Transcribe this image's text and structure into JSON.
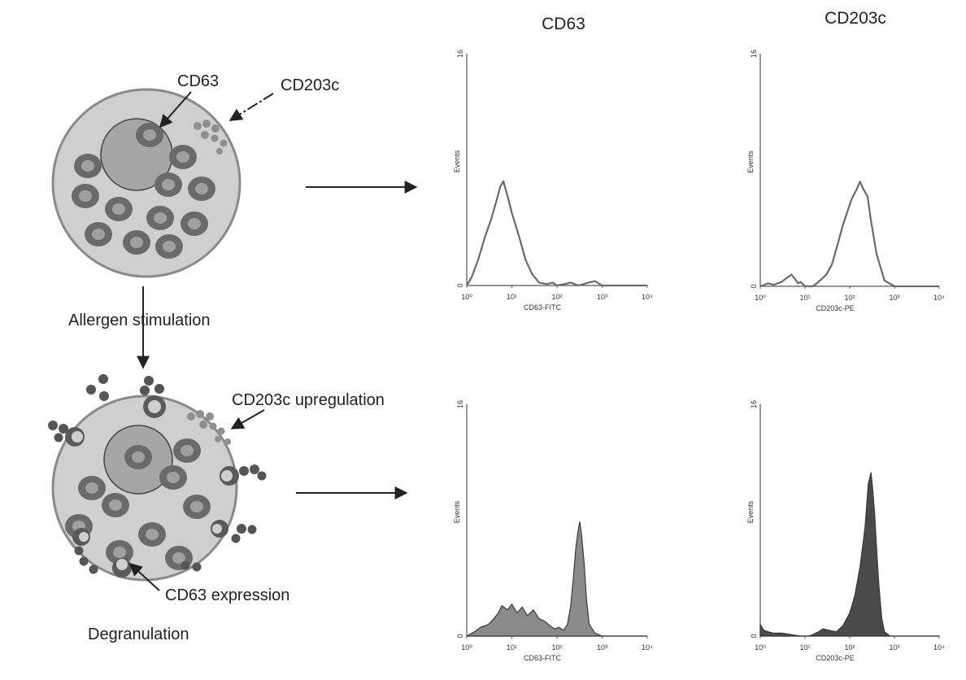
{
  "headers": {
    "left_column": "CD63",
    "right_column": "CD203c"
  },
  "labels": {
    "cd63": "CD63",
    "cd203c": "CD203c",
    "allergen_stimulation": "Allergen stimulation",
    "cd203c_upregulation": "CD203c upregulation",
    "cd63_expression": "CD63 expression",
    "degranulation": "Degranulation"
  },
  "chart_data": [
    {
      "id": "cd63-resting",
      "type": "line",
      "filled": false,
      "xlabel": "CD63-FITC",
      "ylabel": "Events",
      "xscale": "log",
      "xlim": [
        1,
        10000
      ],
      "ylim": [
        0,
        16
      ],
      "xticks": [
        "10⁰",
        "10¹",
        "10²",
        "10³",
        "10⁴"
      ],
      "yticks": [
        "0",
        "16"
      ],
      "x": [
        1,
        1.3,
        1.8,
        2.5,
        3.5,
        4.5,
        5.5,
        6.5,
        8,
        10,
        12,
        15,
        20,
        28,
        40,
        60,
        80,
        100,
        150,
        200,
        300,
        500,
        700,
        1000,
        2000,
        10000
      ],
      "y": [
        0,
        0.6,
        1.8,
        3.3,
        4.6,
        5.8,
        6.8,
        7.2,
        6.2,
        5.0,
        4.2,
        3.2,
        1.8,
        0.8,
        0.2,
        0.1,
        0.2,
        0,
        0.1,
        0.2,
        0,
        0.2,
        0.3,
        0,
        0,
        0
      ]
    },
    {
      "id": "cd203c-resting",
      "type": "line",
      "filled": false,
      "xlabel": "CD203c-PE",
      "ylabel": "Events",
      "xscale": "log",
      "xlim": [
        1,
        10000
      ],
      "ylim": [
        0,
        16
      ],
      "xticks": [
        "10⁰",
        "10¹",
        "10²",
        "10³",
        "10⁴"
      ],
      "yticks": [
        "0",
        "16"
      ],
      "x": [
        1,
        1.5,
        2,
        3,
        4,
        5,
        6,
        7,
        8,
        10,
        15,
        20,
        30,
        40,
        55,
        70,
        90,
        110,
        140,
        170,
        200,
        250,
        300,
        400,
        600,
        1000,
        10000
      ],
      "y": [
        0,
        0.2,
        0.1,
        0.3,
        0.6,
        0.8,
        0.5,
        0.2,
        0.3,
        0,
        0,
        0.3,
        0.8,
        1.5,
        3.0,
        4.2,
        5.2,
        6.0,
        6.6,
        7.2,
        6.7,
        6.2,
        4.5,
        2.2,
        0.4,
        0,
        0
      ]
    },
    {
      "id": "cd63-stimulated",
      "type": "area",
      "filled": true,
      "xlabel": "CD63-FITC",
      "ylabel": "Events",
      "xscale": "log",
      "xlim": [
        1,
        10000
      ],
      "ylim": [
        0,
        16
      ],
      "xticks": [
        "10⁰",
        "10¹",
        "10²",
        "10³",
        "10⁴"
      ],
      "yticks": [
        "0",
        "16"
      ],
      "x": [
        1,
        1.5,
        2,
        3,
        4,
        5,
        6,
        8,
        10,
        13,
        17,
        22,
        30,
        40,
        55,
        70,
        90,
        110,
        140,
        170,
        200,
        230,
        260,
        290,
        320,
        350,
        400,
        450,
        520,
        700,
        1000,
        10000
      ],
      "y": [
        0,
        0.3,
        0.6,
        0.8,
        1.2,
        1.6,
        2.1,
        1.8,
        2.2,
        1.6,
        2.0,
        1.4,
        1.8,
        1.2,
        1.0,
        0.7,
        0.5,
        0.6,
        0.4,
        0.8,
        2.0,
        4.0,
        6.0,
        7.2,
        7.9,
        7.0,
        5.0,
        2.5,
        0.8,
        0.2,
        0,
        0
      ]
    },
    {
      "id": "cd203c-stimulated",
      "type": "area",
      "filled": true,
      "xlabel": "CD203c-PE",
      "ylabel": "Events",
      "xscale": "log",
      "xlim": [
        1,
        10000
      ],
      "ylim": [
        0,
        16
      ],
      "xticks": [
        "10⁰",
        "10¹",
        "10²",
        "10³",
        "10⁴"
      ],
      "yticks": [
        "0",
        "16"
      ],
      "x": [
        1,
        1.2,
        1.5,
        2,
        3,
        5,
        8,
        12,
        15,
        20,
        25,
        35,
        50,
        70,
        100,
        130,
        170,
        220,
        260,
        300,
        330,
        360,
        400,
        450,
        520,
        600,
        800,
        10000
      ],
      "y": [
        0.8,
        0.4,
        0.3,
        0.2,
        0.2,
        0.1,
        0,
        0,
        0.1,
        0.3,
        0.5,
        0.4,
        0.3,
        0.7,
        1.6,
        2.8,
        4.8,
        7.5,
        10.5,
        11.3,
        10.0,
        8.5,
        6.0,
        3.5,
        1.2,
        0.3,
        0,
        0
      ]
    }
  ]
}
